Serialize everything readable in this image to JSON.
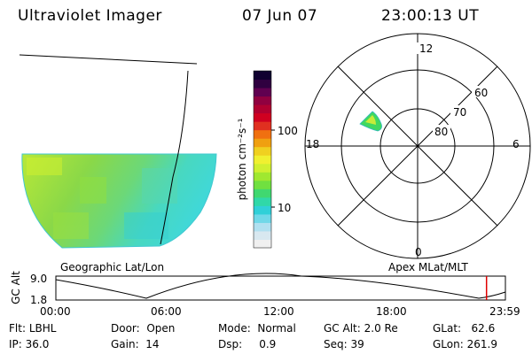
{
  "header": {
    "instrument": "Ultraviolet Imager",
    "date": "07 Jun 07",
    "time": "23:00:13 UT"
  },
  "colorbar": {
    "unit_label": "photon cm⁻²s⁻¹",
    "ticks": [
      "100",
      "10"
    ],
    "colors": [
      "#f0f0f0",
      "#d8e8f0",
      "#b0e0f0",
      "#70d8e8",
      "#30d0d8",
      "#30d8a8",
      "#40d870",
      "#70e040",
      "#a0e830",
      "#d0f030",
      "#f0f030",
      "#f0d020",
      "#f0a010",
      "#f07010",
      "#e03020",
      "#d00020",
      "#b00030",
      "#900040",
      "#600050",
      "#300040",
      "#100030"
    ]
  },
  "geo_panel": {
    "label": "Geographic Lat/Lon"
  },
  "polar_panel": {
    "label": "Apex MLat/MLT",
    "mlt_labels": {
      "top": "12",
      "right": "6",
      "bottom": "0",
      "left": "18"
    },
    "lat_labels": [
      "60",
      "70",
      "80"
    ]
  },
  "orbit_plot": {
    "ylabel": "GC Alt",
    "ymax": "9.0",
    "ymin": "1.8",
    "time_labels": [
      "00:00",
      "06:00",
      "12:00",
      "18:00",
      "23:59"
    ],
    "current_time_fraction": 0.958
  },
  "status": {
    "flt": {
      "label": "Flt:",
      "value": "LBHL"
    },
    "ip": {
      "label": "IP:",
      "value": "36.0"
    },
    "door": {
      "label": "Door:",
      "value": "Open"
    },
    "gain": {
      "label": "Gain:",
      "value": "14"
    },
    "mode": {
      "label": "Mode:",
      "value": "Normal"
    },
    "dsp": {
      "label": "Dsp:",
      "value": "0.9"
    },
    "gcalt": {
      "label": "GC Alt:",
      "value": "2.0 Re"
    },
    "seq": {
      "label": "Seq:",
      "value": "39"
    },
    "glat": {
      "label": "GLat:",
      "value": "62.6"
    },
    "glon": {
      "label": "GLon:",
      "value": "261.9"
    }
  }
}
